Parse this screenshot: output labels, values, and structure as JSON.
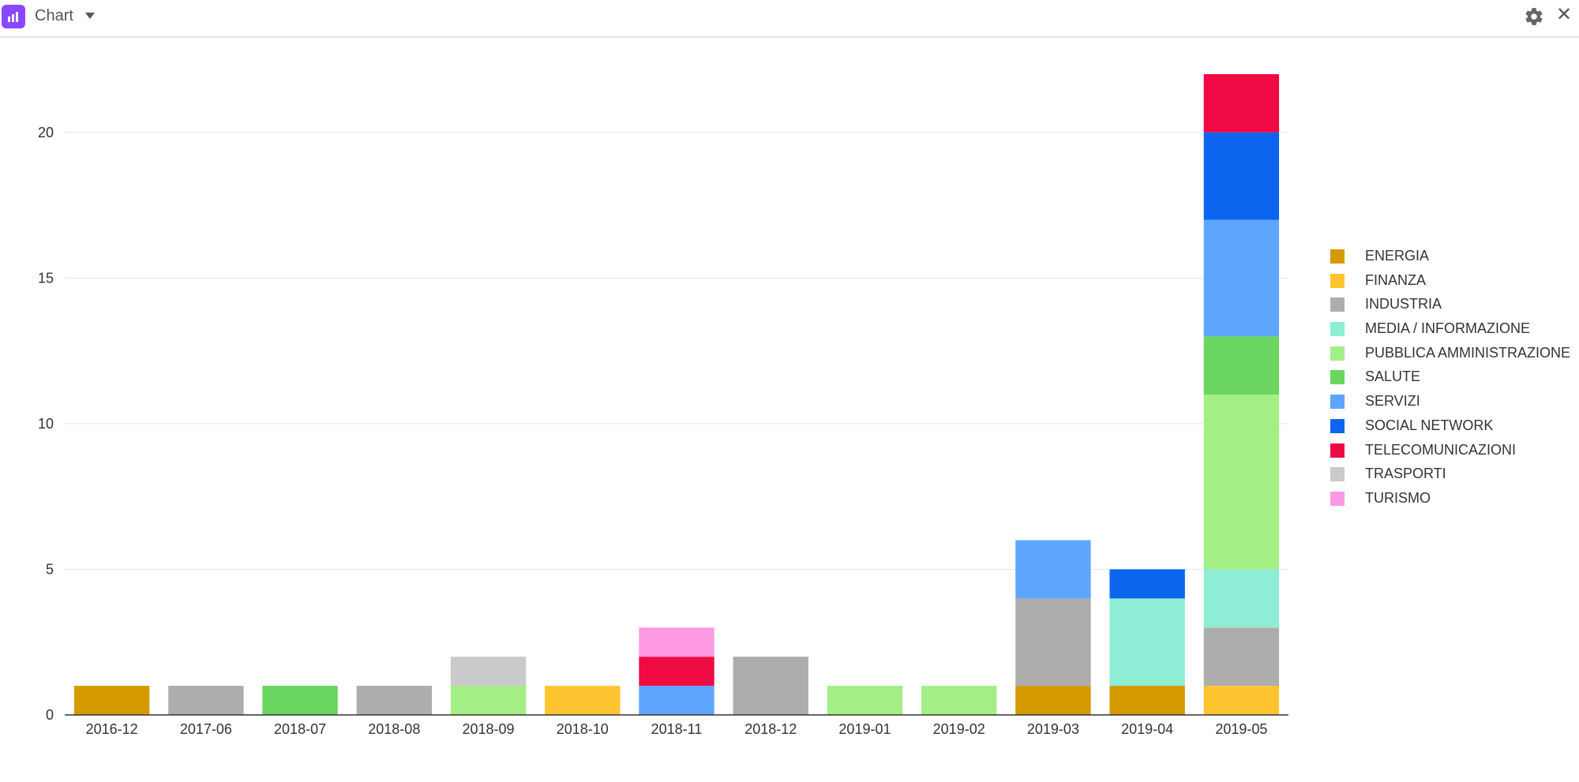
{
  "header": {
    "title": "Chart",
    "icons": [
      "chart-icon",
      "chevron-down-icon",
      "gear-icon",
      "close-icon"
    ]
  },
  "chart_data": {
    "type": "bar",
    "stacked": true,
    "categories": [
      "2016-12",
      "2017-06",
      "2018-07",
      "2018-08",
      "2018-09",
      "2018-10",
      "2018-11",
      "2018-12",
      "2019-01",
      "2019-02",
      "2019-03",
      "2019-04",
      "2019-05"
    ],
    "ylim": [
      0,
      22
    ],
    "yticks": [
      0,
      5,
      10,
      15,
      20
    ],
    "grid": true,
    "legend_position": "right",
    "title": "",
    "xlabel": "",
    "ylabel": "",
    "series": [
      {
        "name": "ENERGIA",
        "color": "#d49a00",
        "values": [
          1,
          0,
          0,
          0,
          0,
          0,
          0,
          0,
          0,
          0,
          1,
          1,
          0
        ]
      },
      {
        "name": "FINANZA",
        "color": "#ffc531",
        "values": [
          0,
          0,
          0,
          0,
          0,
          1,
          0,
          0,
          0,
          0,
          0,
          0,
          1
        ]
      },
      {
        "name": "INDUSTRIA",
        "color": "#adadad",
        "values": [
          0,
          1,
          0,
          1,
          0,
          0,
          0,
          2,
          0,
          0,
          3,
          0,
          2
        ]
      },
      {
        "name": "MEDIA / INFORMAZIONE",
        "color": "#8deed5",
        "values": [
          0,
          0,
          0,
          0,
          0,
          0,
          0,
          0,
          0,
          0,
          0,
          3,
          2
        ]
      },
      {
        "name": "PUBBLICA AMMINISTRAZIONE",
        "color": "#a3ef86",
        "values": [
          0,
          0,
          0,
          0,
          1,
          0,
          0,
          0,
          1,
          1,
          0,
          0,
          6
        ]
      },
      {
        "name": "SALUTE",
        "color": "#6ad55f",
        "values": [
          0,
          0,
          1,
          0,
          0,
          0,
          0,
          0,
          0,
          0,
          0,
          0,
          2
        ]
      },
      {
        "name": "SERVIZI",
        "color": "#5ea5ff",
        "values": [
          0,
          0,
          0,
          0,
          0,
          0,
          1,
          0,
          0,
          0,
          2,
          0,
          4
        ]
      },
      {
        "name": "SOCIAL NETWORK",
        "color": "#0b65ee",
        "values": [
          0,
          0,
          0,
          0,
          0,
          0,
          0,
          0,
          0,
          0,
          0,
          1,
          3
        ]
      },
      {
        "name": "TELECOMUNICAZIONI",
        "color": "#ef0a44",
        "values": [
          0,
          0,
          0,
          0,
          0,
          0,
          1,
          0,
          0,
          0,
          0,
          0,
          2
        ]
      },
      {
        "name": "TRASPORTI",
        "color": "#cacaca",
        "values": [
          0,
          0,
          0,
          0,
          1,
          0,
          0,
          0,
          0,
          0,
          0,
          0,
          0
        ]
      },
      {
        "name": "TURISMO",
        "color": "#fd99e2",
        "values": [
          0,
          0,
          0,
          0,
          0,
          0,
          1,
          0,
          0,
          0,
          0,
          0,
          0
        ]
      }
    ]
  }
}
